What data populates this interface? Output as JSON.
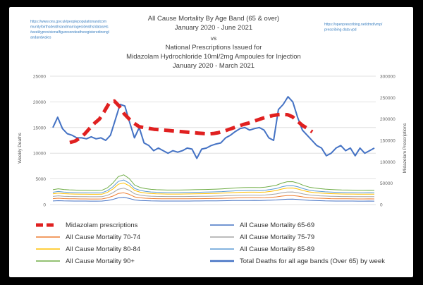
{
  "chart_data": {
    "type": "line",
    "title_lines": [
      "All Cause Mortality By Age Band (65 & over)",
      "January 2020 - June 2021",
      "vs",
      "National Prescriptions Issued for",
      "Midazolam Hydrochloride 10ml/2mg Ampoules for Injection",
      "January 2020 - March 2021"
    ],
    "source_left": [
      "https://www.ons.gov.uk/peoplepopulationandcom",
      "munity/birthsdeathsandmarriages/deaths/datasets",
      "/weeklyprovisionalfiguresondeathsregisteredinengl",
      "andandwales"
    ],
    "source_right": [
      "https://openprescribing.net/dmd/vmp/",
      "prescribing-data-vpd"
    ],
    "ylabel_left": "Weekly Deaths",
    "ylabel_right": "Midazolam Prescriptions",
    "ylim_left": [
      0,
      25000
    ],
    "ylim_right": [
      0,
      300000
    ],
    "yticks_left": [
      "0",
      "5000",
      "10000",
      "15000",
      "20000",
      "25000"
    ],
    "yticks_right": [
      "0",
      "50000",
      "100000",
      "150000",
      "200000",
      "250000",
      "300000"
    ],
    "grid": true,
    "legend_position": "bottom",
    "series": [
      {
        "name": "Midazolam prescriptions",
        "axis": "right",
        "color": "#e02020",
        "style": "dashed-thick",
        "values": [
          145000,
          148000,
          155000,
          165000,
          178000,
          190000,
          200000,
          218000,
          238000,
          242000,
          230000,
          212000,
          200000,
          190000,
          182000,
          180000,
          178000,
          176000,
          175000,
          174000,
          173000,
          172000,
          171000,
          170000,
          169000,
          168000,
          167000,
          166000,
          165000,
          166000,
          168000,
          171000,
          175000,
          179000,
          183000,
          187000,
          190000,
          194000,
          198000,
          202000,
          205000,
          208000,
          210000,
          211000,
          210000,
          205000,
          195000,
          185000,
          178000,
          170000
        ]
      },
      {
        "name": "All Cause Mortality 65-69",
        "axis": "left",
        "color": "#4472c4",
        "style": "thin",
        "values": [
          700,
          760,
          720,
          700,
          690,
          680,
          680,
          670,
          670,
          680,
          800,
          1000,
          1300,
          1400,
          1200,
          900,
          800,
          750,
          720,
          700,
          690,
          680,
          680,
          680,
          690,
          690,
          700,
          700,
          710,
          720,
          730,
          740,
          760,
          780,
          790,
          800,
          800,
          810,
          800,
          820,
          860,
          900,
          980,
          1050,
          1060,
          1000,
          900,
          820,
          780,
          750,
          720,
          700,
          690,
          690,
          680,
          680,
          670,
          670,
          680,
          670
        ]
      },
      {
        "name": "All Cause Mortality 70-74",
        "axis": "left",
        "color": "#ed7d31",
        "style": "thin",
        "values": [
          1150,
          1230,
          1170,
          1140,
          1120,
          1100,
          1100,
          1090,
          1090,
          1100,
          1300,
          1650,
          2150,
          2300,
          2000,
          1500,
          1320,
          1230,
          1180,
          1150,
          1130,
          1120,
          1120,
          1120,
          1130,
          1140,
          1150,
          1160,
          1170,
          1180,
          1200,
          1220,
          1250,
          1280,
          1300,
          1320,
          1330,
          1330,
          1320,
          1350,
          1420,
          1500,
          1650,
          1750,
          1760,
          1650,
          1480,
          1350,
          1280,
          1230,
          1190,
          1160,
          1140,
          1130,
          1120,
          1110,
          1100,
          1100,
          1110,
          1100
        ]
      },
      {
        "name": "All Cause Mortality 75-79",
        "axis": "left",
        "color": "#a5a5a5",
        "style": "thin",
        "values": [
          1600,
          1700,
          1620,
          1580,
          1560,
          1540,
          1540,
          1520,
          1520,
          1540,
          1800,
          2300,
          3000,
          3200,
          2800,
          2100,
          1840,
          1710,
          1640,
          1600,
          1580,
          1560,
          1560,
          1560,
          1570,
          1580,
          1600,
          1610,
          1620,
          1640,
          1660,
          1690,
          1730,
          1770,
          1800,
          1830,
          1840,
          1840,
          1830,
          1870,
          1970,
          2080,
          2300,
          2450,
          2460,
          2300,
          2060,
          1880,
          1780,
          1710,
          1660,
          1620,
          1590,
          1570,
          1560,
          1550,
          1540,
          1540,
          1550,
          1540
        ]
      },
      {
        "name": "All Cause Mortality 80-84",
        "axis": "left",
        "color": "#ffc000",
        "style": "thin",
        "values": [
          2100,
          2230,
          2130,
          2080,
          2050,
          2020,
          2020,
          2000,
          2000,
          2020,
          2370,
          3020,
          3950,
          4200,
          3680,
          2760,
          2420,
          2250,
          2150,
          2100,
          2080,
          2050,
          2050,
          2050,
          2060,
          2080,
          2100,
          2110,
          2130,
          2150,
          2180,
          2220,
          2270,
          2320,
          2360,
          2400,
          2420,
          2420,
          2400,
          2450,
          2580,
          2730,
          3020,
          3220,
          3230,
          3020,
          2700,
          2470,
          2340,
          2250,
          2180,
          2130,
          2090,
          2060,
          2050,
          2040,
          2020,
          2020,
          2030,
          2020
        ]
      },
      {
        "name": "All Cause Mortality 85-89",
        "axis": "left",
        "color": "#5b9bd5",
        "style": "thin",
        "values": [
          2400,
          2550,
          2430,
          2370,
          2340,
          2310,
          2310,
          2280,
          2280,
          2310,
          2700,
          3450,
          4500,
          4800,
          4200,
          3150,
          2760,
          2570,
          2460,
          2400,
          2370,
          2340,
          2340,
          2340,
          2360,
          2370,
          2400,
          2410,
          2430,
          2460,
          2490,
          2530,
          2590,
          2650,
          2700,
          2740,
          2760,
          2760,
          2740,
          2800,
          2950,
          3120,
          3450,
          3680,
          3690,
          3450,
          3090,
          2820,
          2670,
          2570,
          2490,
          2430,
          2390,
          2360,
          2340,
          2330,
          2310,
          2310,
          2320,
          2300
        ]
      },
      {
        "name": "All Cause Mortality 90+",
        "axis": "left",
        "color": "#70ad47",
        "style": "thin",
        "values": [
          2900,
          3080,
          2940,
          2870,
          2830,
          2790,
          2790,
          2760,
          2760,
          2790,
          3260,
          4170,
          5440,
          5800,
          5080,
          3810,
          3340,
          3110,
          2970,
          2900,
          2870,
          2830,
          2830,
          2830,
          2850,
          2870,
          2900,
          2920,
          2940,
          2970,
          3010,
          3060,
          3130,
          3200,
          3260,
          3310,
          3340,
          3340,
          3310,
          3390,
          3570,
          3770,
          4170,
          4450,
          4460,
          4170,
          3740,
          3410,
          3230,
          3110,
          3010,
          2940,
          2890,
          2850,
          2830,
          2820,
          2790,
          2790,
          2800,
          2780
        ]
      },
      {
        "name": "Total Deaths for all age bands (Over 65) by week",
        "axis": "left",
        "color": "#4472c4",
        "style": "thick",
        "values": [
          15000,
          17000,
          14800,
          13800,
          13500,
          13000,
          13000,
          12800,
          13200,
          12800,
          13000,
          12500,
          13500,
          16500,
          19500,
          19200,
          16000,
          13000,
          15000,
          12000,
          11500,
          10500,
          11000,
          10500,
          10000,
          10500,
          10200,
          10500,
          11000,
          10800,
          9000,
          10800,
          11000,
          11500,
          11800,
          12000,
          13000,
          13500,
          14200,
          14800,
          15000,
          14500,
          14800,
          15000,
          14500,
          13000,
          12500,
          18500,
          19500,
          21000,
          20000,
          17000,
          14500,
          13500,
          12500,
          11500,
          11000,
          9500,
          10000,
          11000,
          11500,
          10500,
          11000,
          9500,
          11000,
          10000,
          10500,
          11000
        ]
      }
    ],
    "legend": [
      {
        "label": "Midazolam prescriptions",
        "color": "#e02020",
        "style": "dashed-thick"
      },
      {
        "label": "All Cause Mortality 65-69",
        "color": "#4472c4",
        "style": "thin"
      },
      {
        "label": "All Cause Mortality 70-74",
        "color": "#ed7d31",
        "style": "thin"
      },
      {
        "label": "All Cause Mortality 75-79",
        "color": "#a5a5a5",
        "style": "thin"
      },
      {
        "label": "All Cause Mortality 80-84",
        "color": "#ffc000",
        "style": "thin"
      },
      {
        "label": "All Cause Mortality 85-89",
        "color": "#5b9bd5",
        "style": "thin"
      },
      {
        "label": "All Cause Mortality 90+",
        "color": "#70ad47",
        "style": "thin"
      },
      {
        "label": "Total Deaths for all age bands (Over 65) by week",
        "color": "#4472c4",
        "style": "thick"
      }
    ]
  }
}
